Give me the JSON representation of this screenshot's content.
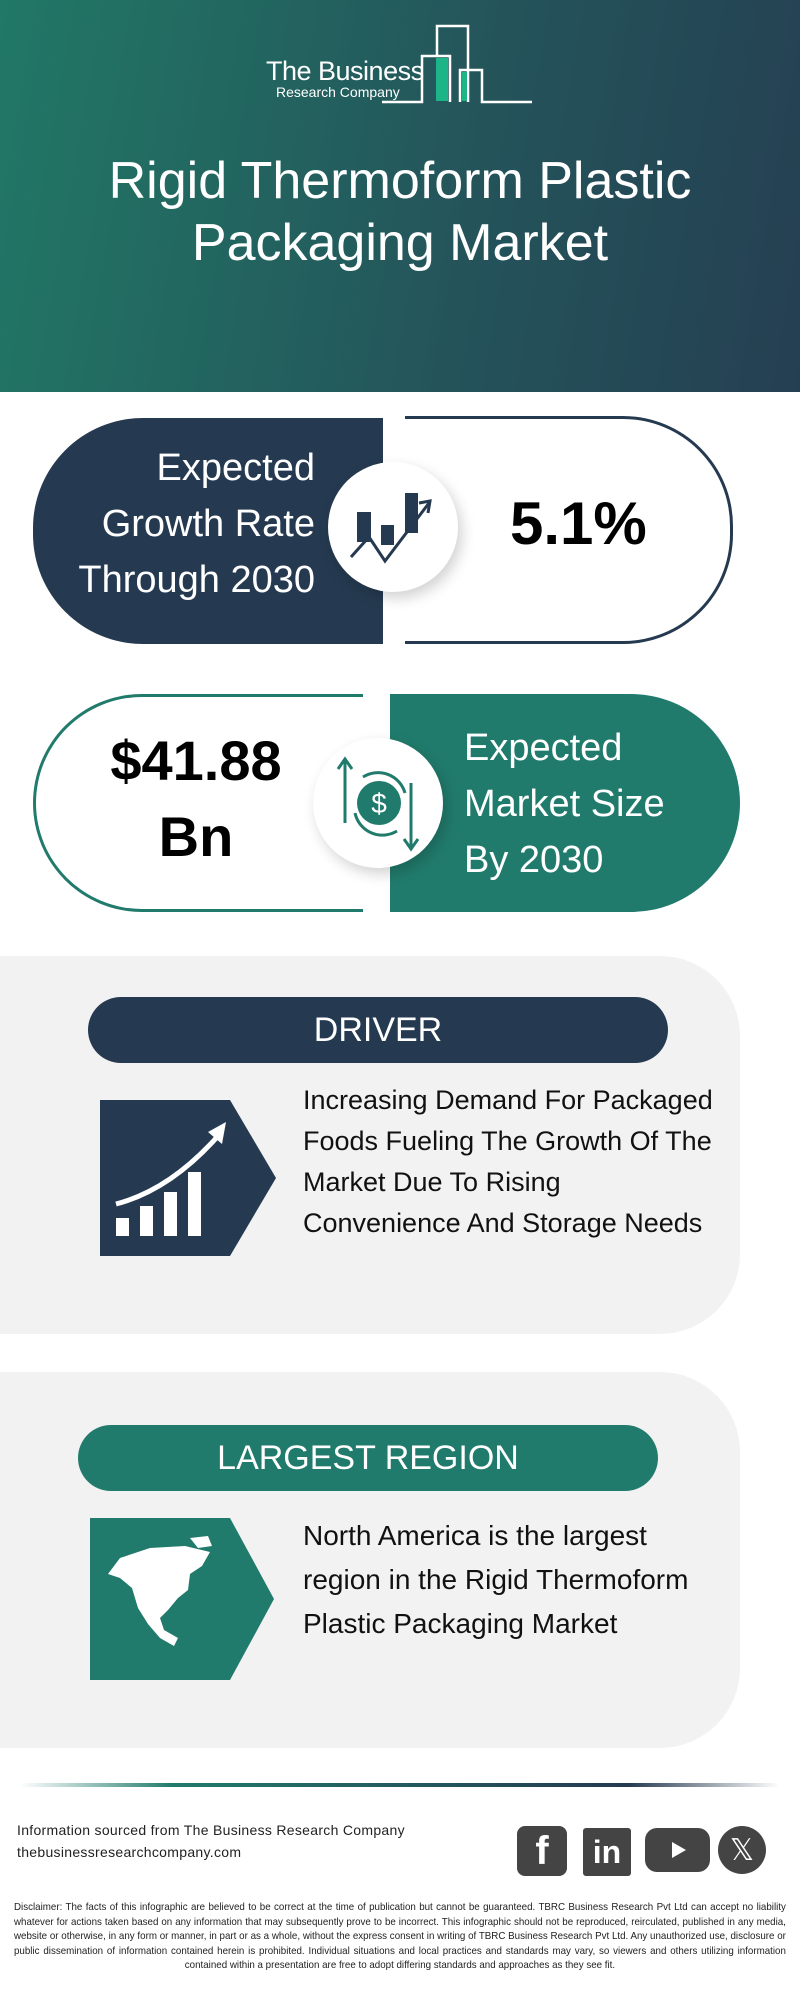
{
  "header": {
    "logo_line1": "The Business",
    "logo_line2": "Research Company",
    "title": "Rigid Thermoform Plastic Packaging Market"
  },
  "growth": {
    "label_lines": [
      "Expected",
      "Growth Rate",
      "Through 2030"
    ],
    "value": "5.1%",
    "icon": "growth-chart-icon"
  },
  "market_size": {
    "value_lines": [
      "$41.88",
      "Bn"
    ],
    "label_lines": [
      "Expected",
      "Market Size",
      "By 2030"
    ],
    "icon": "dollar-exchange-icon"
  },
  "driver": {
    "heading": "DRIVER",
    "text": "Increasing Demand For Packaged Foods Fueling The Growth Of The Market Due To Rising Convenience And Storage Needs",
    "icon": "rising-bars-icon"
  },
  "region": {
    "heading": "LARGEST REGION",
    "text": "North America is the largest region in the Rigid Thermoform Plastic Packaging Market",
    "icon": "north-america-map-icon"
  },
  "footer": {
    "source": "Information sourced from The Business Research Company",
    "website": "thebusinessresearchcompany.com",
    "social": [
      "facebook",
      "linkedin",
      "youtube",
      "x"
    ],
    "disclaimer": "Disclaimer: The facts of this infographic are believed to be correct at the time of publication but cannot be guaranteed. TBRC Business Research Pvt Ltd can accept no liability whatever for actions taken based on any information that may subsequently prove to be incorrect. This infographic should not be reproduced, reirculated, published in any media, website or otherwise, in any form or manner, in part or as a whole, without the express consent in writing of TBRC Business Research Pvt Ltd. Any unauthorized use, disclosure or public dissemination of information contained herein is prohibited. Individual situations and local practices and standards may vary, so viewers and others utilizing information contained within a presentation are free to adopt differing standards and approaches as they see fit."
  },
  "colors": {
    "navy": "#253a50",
    "teal": "#217b6c",
    "panel": "#f2f2f2"
  }
}
